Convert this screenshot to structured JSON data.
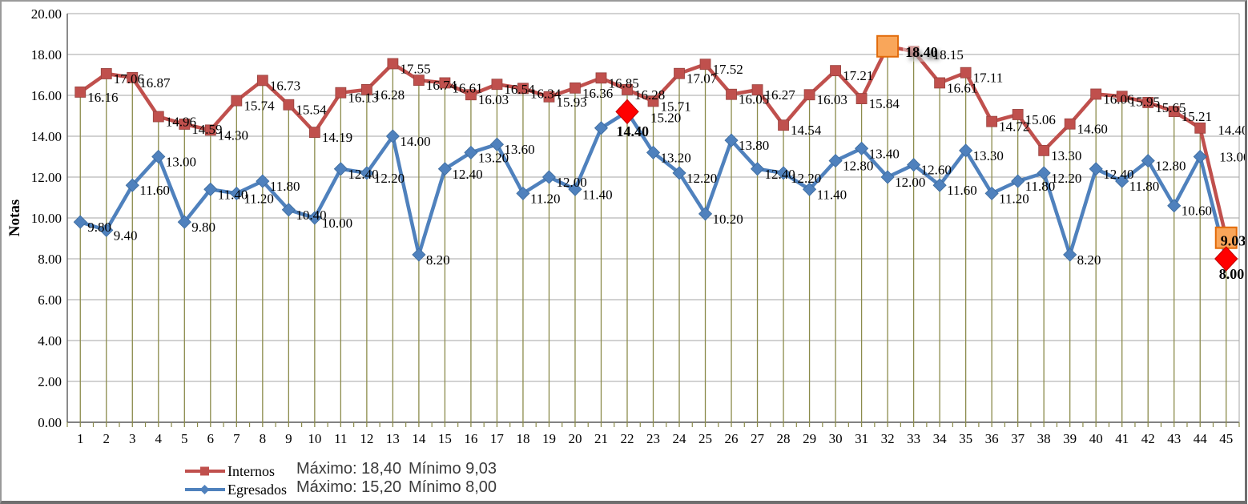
{
  "chart_data": {
    "type": "line",
    "title": "",
    "ylabel": "Notas",
    "xlabel": "",
    "ylim": [
      0,
      20
    ],
    "grid": true,
    "legend_position": "bottom-left",
    "y_ticks": [
      "0.00",
      "2.00",
      "4.00",
      "6.00",
      "8.00",
      "10.00",
      "12.00",
      "14.00",
      "16.00",
      "18.00",
      "20.00"
    ],
    "categories": [
      1,
      2,
      3,
      4,
      5,
      6,
      7,
      8,
      9,
      10,
      11,
      12,
      13,
      14,
      15,
      16,
      17,
      18,
      19,
      20,
      21,
      22,
      23,
      24,
      25,
      26,
      27,
      28,
      29,
      30,
      31,
      32,
      33,
      34,
      35,
      36,
      37,
      38,
      39,
      40,
      41,
      42,
      43,
      44,
      45
    ],
    "series": [
      {
        "name": "Internos",
        "color": "#C0504D",
        "marker": "square",
        "values": [
          16.16,
          17.06,
          16.87,
          14.96,
          14.59,
          14.3,
          15.74,
          16.73,
          15.54,
          14.19,
          16.13,
          16.28,
          17.55,
          16.74,
          16.61,
          16.03,
          16.54,
          16.34,
          15.93,
          16.36,
          16.85,
          16.28,
          15.71,
          17.07,
          17.52,
          16.05,
          16.27,
          14.54,
          16.03,
          17.21,
          15.84,
          18.4,
          18.15,
          16.61,
          17.11,
          14.72,
          15.06,
          13.3,
          14.6,
          16.06,
          15.95,
          15.65,
          15.21,
          14.4,
          9.03
        ]
      },
      {
        "name": "Egresados",
        "color": "#4F81BD",
        "marker": "diamond",
        "values": [
          9.8,
          9.4,
          11.6,
          13.0,
          9.8,
          11.4,
          11.2,
          11.8,
          10.4,
          10.0,
          12.4,
          12.2,
          14.0,
          8.2,
          12.4,
          13.2,
          13.6,
          11.2,
          12.0,
          11.4,
          14.4,
          15.2,
          13.2,
          12.2,
          10.2,
          13.8,
          12.4,
          12.2,
          11.4,
          12.8,
          13.4,
          12.0,
          12.6,
          11.6,
          13.3,
          11.2,
          11.8,
          12.2,
          8.2,
          12.4,
          11.8,
          12.8,
          10.6,
          13.0,
          8.0
        ]
      }
    ],
    "annotations": [
      {
        "series": "Internos",
        "kind": "max",
        "category": 32,
        "value": 18.4,
        "shape": "orange-square"
      },
      {
        "series": "Internos",
        "kind": "min",
        "category": 45,
        "value": 9.03,
        "shape": "orange-square"
      },
      {
        "series": "Egresados",
        "kind": "max",
        "category": 22,
        "value": 15.2,
        "shape": "red-diamond"
      },
      {
        "series": "Egresados",
        "kind": "min",
        "category": 45,
        "value": 8.0,
        "shape": "red-diamond"
      }
    ],
    "colors": {
      "internos": "#C0504D",
      "egresados": "#4F81BD",
      "drop_line": "#8B8B4B",
      "grid": "#A6A6A6",
      "axis": "#595959",
      "annotation_square_fill": "#F9A65A",
      "annotation_square_border": "#E26B0A",
      "annotation_diamond_fill": "#FF0000",
      "annotation_diamond_border": "#C00000",
      "label_color": "#000000"
    }
  },
  "legend": {
    "items": [
      {
        "label": "Internos"
      },
      {
        "label": "Egresados"
      }
    ]
  },
  "stats": [
    {
      "max": "Máximo: 18,40",
      "min": "Mínimo 9,03"
    },
    {
      "max": "Máximo: 15,20",
      "min": "Mínimo 8,00"
    }
  ]
}
